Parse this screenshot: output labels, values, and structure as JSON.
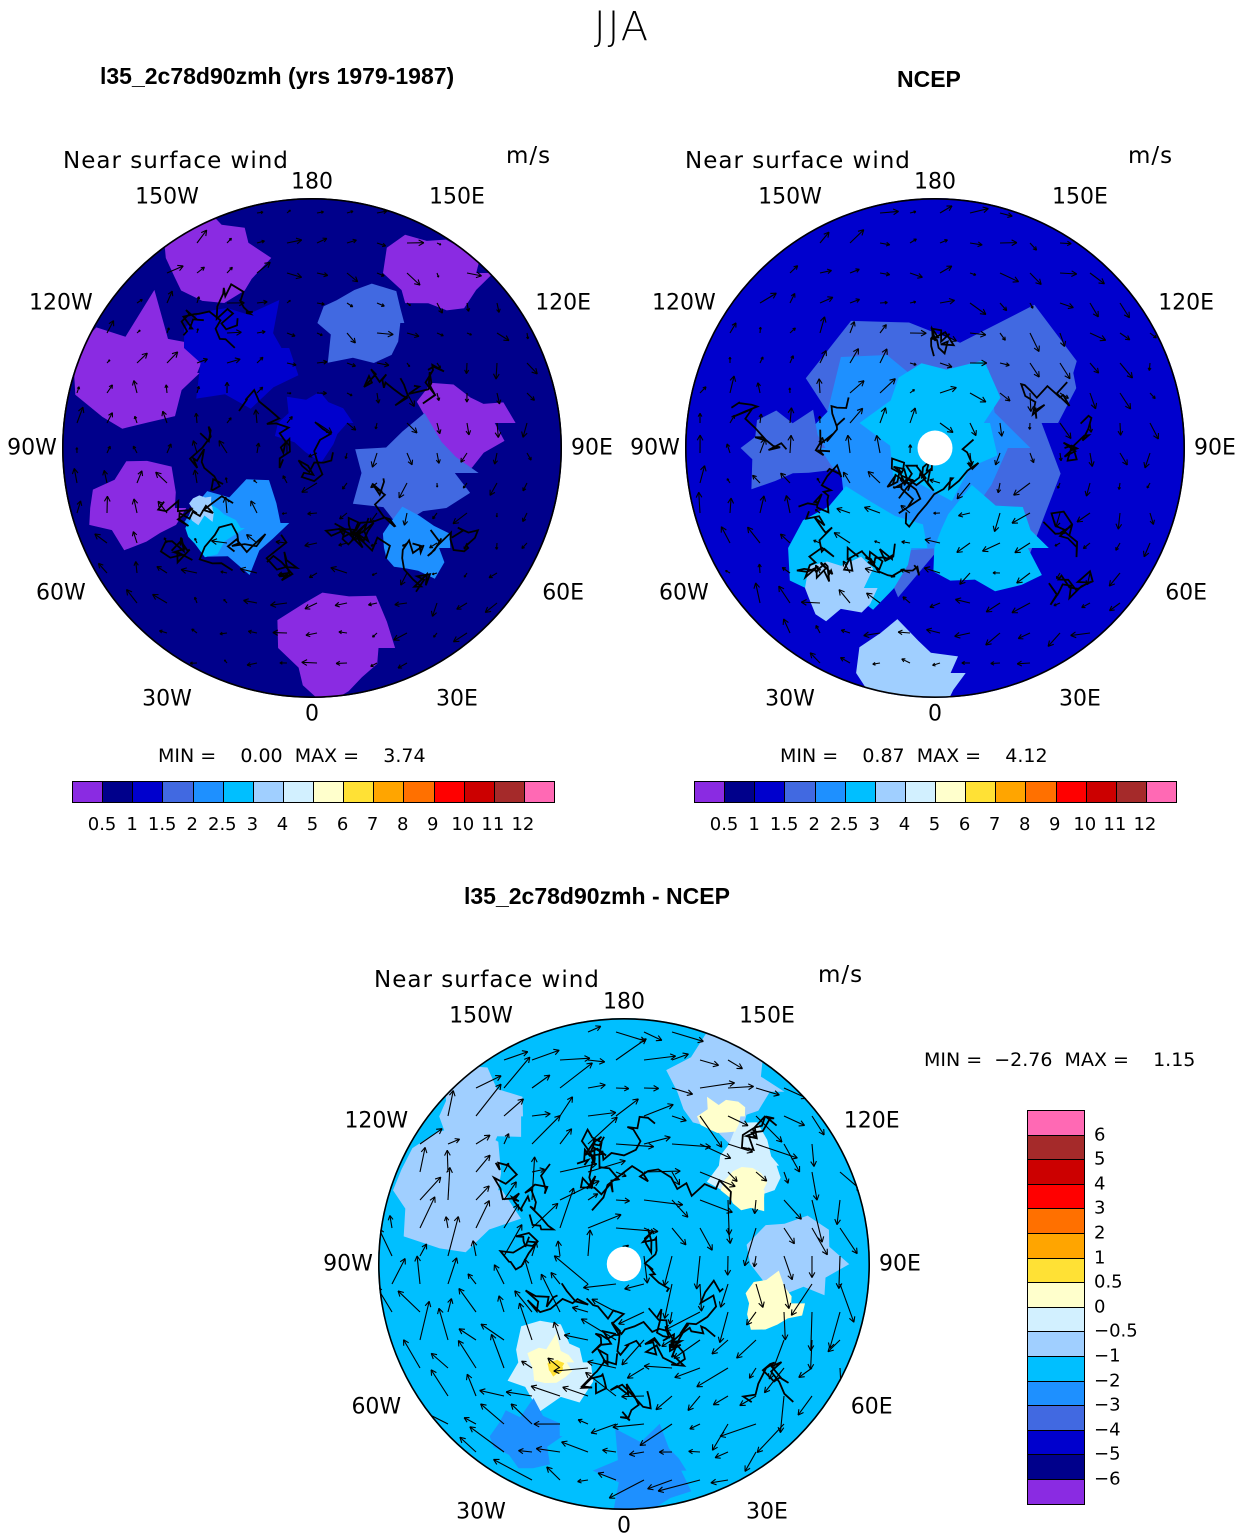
{
  "title": "JJA",
  "colors": {
    "purple": "#8a2be2",
    "navy": "#00008b",
    "blue": "#0000cd",
    "royal": "#4169e1",
    "dodger": "#1e90ff",
    "deepsky": "#00bfff",
    "light": "#a0cfff",
    "paleblue": "#d2f0ff",
    "cream": "#ffffcc",
    "yellow": "#ffe135",
    "orange": "#ffa500",
    "darkorange": "#ff7000",
    "red": "#ff0000",
    "crimson": "#cc0000",
    "brick": "#a52a2a",
    "pink": "#ff69b4"
  },
  "panels": [
    {
      "id": "model",
      "title": "l35_2c78d90zmh (yrs 1979-1987)",
      "label": "Near surface wind",
      "units": "m/s",
      "stats": "MIN =    0.00  MAX =    3.74",
      "palette": [
        "#8a2be2",
        "#00008b",
        "#0000cd",
        "#4169e1",
        "#1e90ff",
        "#00bfff",
        "#a0cfff",
        "#d2f0ff",
        "#ffffcc",
        "#ffe135",
        "#ffa500",
        "#ff7000",
        "#ff0000",
        "#cc0000",
        "#a52a2a",
        "#ff69b4"
      ],
      "levels": [
        "0.5",
        "1",
        "1.5",
        "2",
        "2.5",
        "3",
        "4",
        "5",
        "6",
        "7",
        "8",
        "9",
        "10",
        "11",
        "12"
      ]
    },
    {
      "id": "ncep",
      "title": "NCEP",
      "label": "Near surface wind",
      "units": "m/s",
      "stats": "MIN =    0.87  MAX =    4.12",
      "palette": [
        "#8a2be2",
        "#00008b",
        "#0000cd",
        "#4169e1",
        "#1e90ff",
        "#00bfff",
        "#a0cfff",
        "#d2f0ff",
        "#ffffcc",
        "#ffe135",
        "#ffa500",
        "#ff7000",
        "#ff0000",
        "#cc0000",
        "#a52a2a",
        "#ff69b4"
      ],
      "levels": [
        "0.5",
        "1",
        "1.5",
        "2",
        "2.5",
        "3",
        "4",
        "5",
        "6",
        "7",
        "8",
        "9",
        "10",
        "11",
        "12"
      ]
    },
    {
      "id": "diff",
      "title": "l35_2c78d90zmh - NCEP",
      "label": "Near surface wind",
      "units": "m/s",
      "stats": "MIN =  −2.76  MAX =    1.15",
      "palette": [
        "#ff69b4",
        "#a52a2a",
        "#cc0000",
        "#ff0000",
        "#ff7000",
        "#ffa500",
        "#ffe135",
        "#ffffcc",
        "#d2f0ff",
        "#a0cfff",
        "#00bfff",
        "#1e90ff",
        "#4169e1",
        "#0000cd",
        "#00008b",
        "#8a2be2"
      ],
      "levels": [
        "6",
        "5",
        "4",
        "3",
        "2",
        "1",
        "0.5",
        "0",
        "−0.5",
        "−1",
        "−2",
        "−3",
        "−4",
        "−5",
        "−6"
      ]
    }
  ],
  "longitudes": [
    "180",
    "150E",
    "120E",
    "90E",
    "60E",
    "30E",
    "0",
    "30W",
    "60W",
    "90W",
    "120W",
    "150W"
  ]
}
